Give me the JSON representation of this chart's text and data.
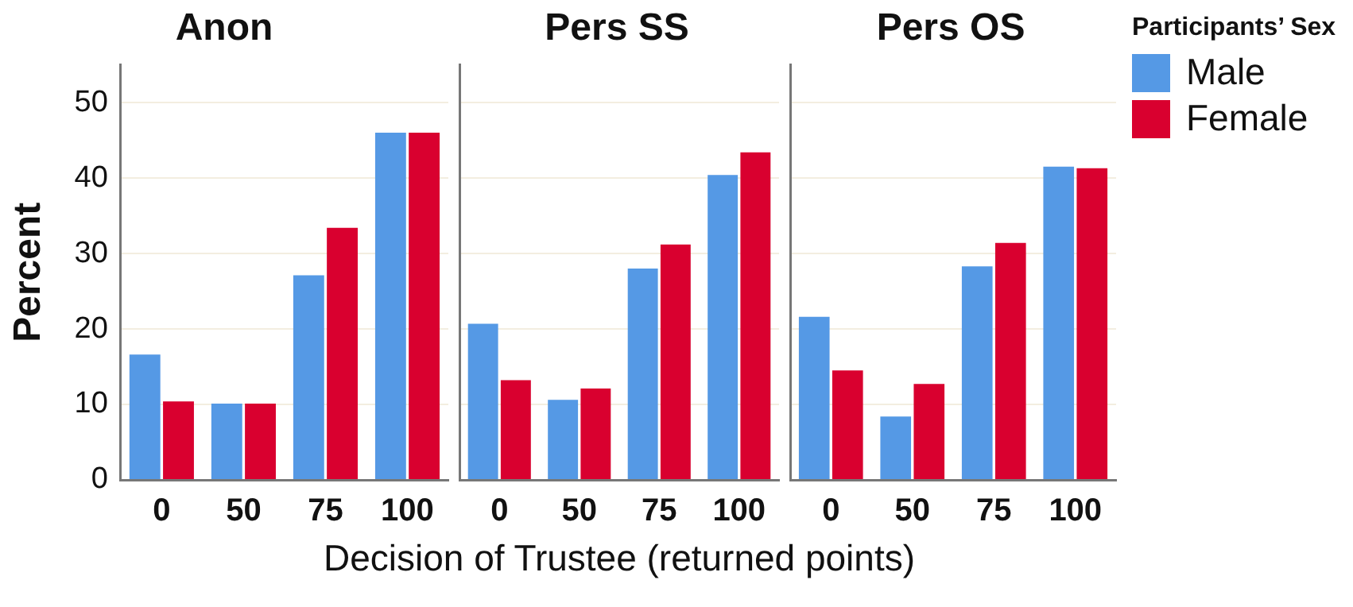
{
  "chart_data": [
    {
      "type": "bar",
      "title": "Anon",
      "ylabel": "Percent",
      "categories": [
        "0",
        "50",
        "75",
        "100"
      ],
      "series": [
        {
          "color": "#5599e5",
          "values": [
            16.6,
            10.1,
            27.1,
            46.0
          ]
        },
        {
          "color": "#d9002f",
          "values": [
            10.4,
            10.1,
            33.4,
            46.0
          ]
        }
      ],
      "ylim": [
        0,
        55
      ],
      "yticks": [
        0,
        10,
        20,
        30,
        40,
        50
      ],
      "grid": "y",
      "legend": false
    },
    {
      "type": "bar",
      "title": "Pers SS",
      "xlabel": "Decision of Trustee (returned points)",
      "categories": [
        "0",
        "50",
        "75",
        "100"
      ],
      "series": [
        {
          "color": "#5599e5",
          "values": [
            20.7,
            10.6,
            28.0,
            40.4
          ]
        },
        {
          "color": "#d9002f",
          "values": [
            13.2,
            12.1,
            31.2,
            43.4
          ]
        }
      ],
      "ylim": [
        0,
        55
      ],
      "yticks": [
        0,
        10,
        20,
        30,
        40,
        50
      ],
      "grid": "y",
      "legend": false,
      "tick_labels": "x"
    },
    {
      "type": "bar",
      "title": "Pers OS",
      "legend_title": "Participants’ Sex",
      "categories": [
        "0",
        "50",
        "75",
        "100"
      ],
      "series": [
        {
          "name": "Male",
          "color": "#5599e5",
          "values": [
            21.6,
            8.4,
            28.3,
            41.5
          ]
        },
        {
          "name": "Female",
          "color": "#d9002f",
          "values": [
            14.5,
            12.7,
            31.4,
            41.3
          ]
        }
      ],
      "ylim": [
        0,
        55
      ],
      "yticks": [
        0,
        10,
        20,
        30,
        40,
        50
      ],
      "grid": "y",
      "legend": "right",
      "tick_labels": "x"
    }
  ]
}
